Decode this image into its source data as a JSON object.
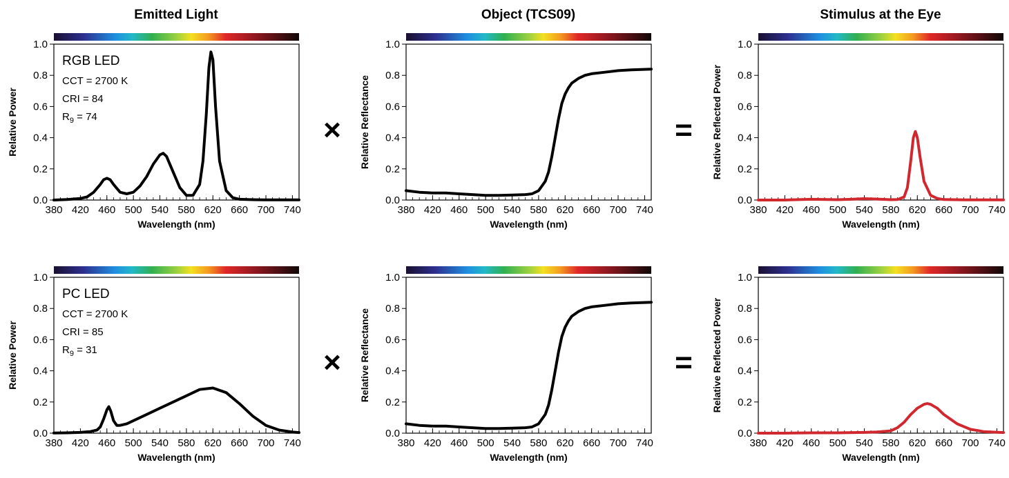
{
  "column_titles": [
    "Emitted Light",
    "Object (TCS09)",
    "Stimulus at the Eye"
  ],
  "operators": [
    "×",
    "="
  ],
  "chart_data": [
    {
      "id": "rgb-emitted",
      "row": 0,
      "col": 0,
      "type": "line",
      "title": "Emitted Light",
      "xlabel": "Wavelength (nm)",
      "ylabel": "Relative Power",
      "xlim": [
        380,
        750
      ],
      "ylim": [
        0,
        1
      ],
      "xticks": [
        380,
        420,
        460,
        500,
        540,
        580,
        620,
        660,
        700,
        740
      ],
      "yticks": [
        "0.0",
        "0.2",
        "0.4",
        "0.6",
        "0.8",
        "1.0"
      ],
      "line_color": "#000000",
      "annotation": {
        "name": "RGB LED",
        "cct": "CCT = 2700 K",
        "cri": "CRI = 84",
        "r9_prefix": "R",
        "r9_sub": "9",
        "r9_suffix": " = 74"
      },
      "series": [
        {
          "x": [
            380,
            400,
            420,
            430,
            440,
            450,
            455,
            460,
            465,
            470,
            480,
            490,
            500,
            510,
            520,
            530,
            540,
            545,
            550,
            560,
            570,
            580,
            590,
            600,
            605,
            610,
            614,
            617,
            620,
            624,
            630,
            640,
            650,
            660,
            680,
            700,
            720,
            750
          ],
          "y": [
            0,
            0.003,
            0.01,
            0.02,
            0.05,
            0.1,
            0.13,
            0.14,
            0.13,
            0.1,
            0.05,
            0.04,
            0.05,
            0.09,
            0.15,
            0.23,
            0.29,
            0.3,
            0.28,
            0.18,
            0.08,
            0.03,
            0.03,
            0.1,
            0.25,
            0.55,
            0.85,
            0.95,
            0.9,
            0.6,
            0.25,
            0.06,
            0.015,
            0.005,
            0.002,
            0.001,
            0.001,
            0.001
          ]
        }
      ]
    },
    {
      "id": "rgb-object",
      "row": 0,
      "col": 1,
      "type": "line",
      "title": "Object (TCS09)",
      "xlabel": "Wavelength (nm)",
      "ylabel": "Relative Reflectance",
      "xlim": [
        380,
        750
      ],
      "ylim": [
        0,
        1
      ],
      "xticks": [
        380,
        420,
        460,
        500,
        540,
        580,
        620,
        660,
        700,
        740
      ],
      "yticks": [
        "0.0",
        "0.2",
        "0.4",
        "0.6",
        "0.8",
        "1.0"
      ],
      "line_color": "#000000",
      "series": [
        {
          "x": [
            380,
            400,
            420,
            440,
            460,
            480,
            500,
            520,
            540,
            560,
            570,
            580,
            590,
            595,
            600,
            605,
            610,
            615,
            620,
            625,
            630,
            640,
            650,
            660,
            680,
            700,
            720,
            750
          ],
          "y": [
            0.06,
            0.05,
            0.045,
            0.045,
            0.04,
            0.035,
            0.03,
            0.03,
            0.032,
            0.035,
            0.04,
            0.06,
            0.12,
            0.18,
            0.28,
            0.4,
            0.52,
            0.62,
            0.68,
            0.72,
            0.75,
            0.78,
            0.8,
            0.81,
            0.82,
            0.83,
            0.835,
            0.84
          ]
        }
      ]
    },
    {
      "id": "rgb-stimulus",
      "row": 0,
      "col": 2,
      "type": "line",
      "title": "Stimulus at the Eye",
      "xlabel": "Wavelength (nm)",
      "ylabel": "Relative Reflected Power",
      "xlim": [
        380,
        750
      ],
      "ylim": [
        0,
        1
      ],
      "xticks": [
        380,
        420,
        460,
        500,
        540,
        580,
        620,
        660,
        700,
        740
      ],
      "yticks": [
        "0.0",
        "0.2",
        "0.4",
        "0.6",
        "0.8",
        "1.0"
      ],
      "line_color": "#d0282e",
      "series": [
        {
          "x": [
            380,
            420,
            460,
            500,
            520,
            540,
            560,
            580,
            590,
            600,
            605,
            610,
            614,
            617,
            620,
            624,
            630,
            640,
            650,
            660,
            700,
            750
          ],
          "y": [
            0,
            0,
            0.005,
            0.002,
            0.005,
            0.009,
            0.006,
            0.002,
            0.003,
            0.02,
            0.08,
            0.25,
            0.4,
            0.44,
            0.4,
            0.28,
            0.12,
            0.03,
            0.01,
            0.003,
            0.001,
            0.001
          ]
        }
      ]
    },
    {
      "id": "pc-emitted",
      "row": 1,
      "col": 0,
      "type": "line",
      "title": "Emitted Light",
      "xlabel": "Wavelength (nm)",
      "ylabel": "Relative Power",
      "xlim": [
        380,
        750
      ],
      "ylim": [
        0,
        1
      ],
      "xticks": [
        380,
        420,
        460,
        500,
        540,
        580,
        620,
        660,
        700,
        740
      ],
      "yticks": [
        "0.0",
        "0.2",
        "0.4",
        "0.6",
        "0.8",
        "1.0"
      ],
      "line_color": "#000000",
      "annotation": {
        "name": "PC LED",
        "cct": "CCT = 2700 K",
        "cri": "CRI = 85",
        "r9_prefix": "R",
        "r9_sub": "9",
        "r9_suffix": " = 31"
      },
      "series": [
        {
          "x": [
            380,
            400,
            420,
            435,
            445,
            450,
            455,
            460,
            463,
            466,
            470,
            475,
            480,
            490,
            500,
            520,
            540,
            560,
            580,
            600,
            620,
            640,
            660,
            680,
            700,
            720,
            740,
            750
          ],
          "y": [
            0.001,
            0.002,
            0.005,
            0.01,
            0.02,
            0.04,
            0.09,
            0.15,
            0.17,
            0.14,
            0.08,
            0.05,
            0.05,
            0.06,
            0.08,
            0.12,
            0.16,
            0.2,
            0.24,
            0.28,
            0.29,
            0.26,
            0.19,
            0.11,
            0.05,
            0.02,
            0.007,
            0.004
          ]
        }
      ]
    },
    {
      "id": "pc-object",
      "row": 1,
      "col": 1,
      "type": "line",
      "title": "Object (TCS09)",
      "xlabel": "Wavelength (nm)",
      "ylabel": "Relative Reflectance",
      "xlim": [
        380,
        750
      ],
      "ylim": [
        0,
        1
      ],
      "xticks": [
        380,
        420,
        460,
        500,
        540,
        580,
        620,
        660,
        700,
        740
      ],
      "yticks": [
        "0.0",
        "0.2",
        "0.4",
        "0.6",
        "0.8",
        "1.0"
      ],
      "line_color": "#000000",
      "series": [
        {
          "x": [
            380,
            400,
            420,
            440,
            460,
            480,
            500,
            520,
            540,
            560,
            570,
            580,
            590,
            595,
            600,
            605,
            610,
            615,
            620,
            625,
            630,
            640,
            650,
            660,
            680,
            700,
            720,
            750
          ],
          "y": [
            0.06,
            0.05,
            0.045,
            0.045,
            0.04,
            0.035,
            0.03,
            0.03,
            0.032,
            0.035,
            0.04,
            0.06,
            0.12,
            0.18,
            0.28,
            0.4,
            0.52,
            0.62,
            0.68,
            0.72,
            0.75,
            0.78,
            0.8,
            0.81,
            0.82,
            0.83,
            0.835,
            0.84
          ]
        }
      ]
    },
    {
      "id": "pc-stimulus",
      "row": 1,
      "col": 2,
      "type": "line",
      "title": "Stimulus at the Eye",
      "xlabel": "Wavelength (nm)",
      "ylabel": "Relative Reflected Power",
      "xlim": [
        380,
        750
      ],
      "ylim": [
        0,
        1
      ],
      "xticks": [
        380,
        420,
        460,
        500,
        540,
        580,
        620,
        660,
        700,
        740
      ],
      "yticks": [
        "0.0",
        "0.2",
        "0.4",
        "0.6",
        "0.8",
        "1.0"
      ],
      "line_color": "#d0282e",
      "series": [
        {
          "x": [
            380,
            420,
            460,
            500,
            540,
            560,
            580,
            590,
            600,
            610,
            620,
            630,
            635,
            640,
            650,
            660,
            680,
            700,
            720,
            750
          ],
          "y": [
            0,
            0,
            0.002,
            0.002,
            0.005,
            0.008,
            0.015,
            0.035,
            0.07,
            0.12,
            0.16,
            0.185,
            0.19,
            0.185,
            0.16,
            0.12,
            0.06,
            0.025,
            0.01,
            0.004
          ]
        }
      ]
    }
  ]
}
